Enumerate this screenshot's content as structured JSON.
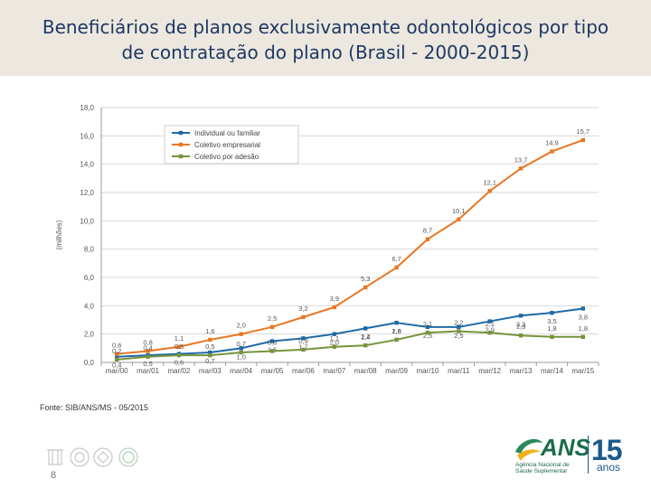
{
  "slide": {
    "title_line1": "Beneficiários de planos exclusivamente odontológicos por tipo",
    "title_line2": "de contratação do plano (Brasil - 2000-2015)",
    "source": "Fonte: SIB/ANS/MS - 05/2015",
    "page_number": "8",
    "logo_text": "ANS",
    "logo_subtitle": "Agência Nacional de Saúde Suplementar",
    "anniversary_number": "15",
    "anniversary_word": "anos"
  },
  "chart_data": {
    "type": "line",
    "title": "",
    "ylabel": "(milhões)",
    "xlabel": "",
    "ylim": [
      0,
      18
    ],
    "yticks": [
      "0,0",
      "2,0",
      "4,0",
      "6,0",
      "8,0",
      "10,0",
      "12,0",
      "14,0",
      "16,0",
      "18,0"
    ],
    "categories": [
      "mar/00",
      "mar/01",
      "mar/02",
      "mar/03",
      "mar/04",
      "mar/05",
      "mar/06",
      "mar/07",
      "mar/08",
      "mar/09",
      "mar/10",
      "mar/11",
      "mar/12",
      "mar/13",
      "mar/14",
      "mar/15"
    ],
    "legend_position": "top-left",
    "series": [
      {
        "name": "Individual ou familiar",
        "color": "#1f6aa5",
        "values": [
          0.4,
          0.5,
          0.6,
          0.7,
          1.0,
          1.5,
          1.7,
          2.0,
          2.4,
          2.8,
          2.5,
          2.5,
          2.9,
          3.3,
          3.5,
          3.8
        ],
        "labels": [
          "0,4",
          "0,5",
          "0,6",
          "0,7",
          "1,0",
          "1,5",
          "1,7",
          "2,0",
          "2,4",
          "2,8",
          "2,5",
          "2,5",
          "2,9",
          "3,3",
          "3,5",
          "3,8"
        ]
      },
      {
        "name": "Coletivo empresarial",
        "color": "#e87722",
        "values": [
          0.6,
          0.8,
          1.1,
          1.6,
          2.0,
          2.5,
          3.2,
          3.9,
          5.3,
          6.7,
          8.7,
          10.1,
          12.1,
          13.7,
          14.9,
          15.7
        ],
        "labels": [
          "0,6",
          "0,8",
          "1,1",
          "1,6",
          "2,0",
          "2,5",
          "3,2",
          "3,9",
          "5,3",
          "6,7",
          "8,7",
          "10,1",
          "12,1",
          "13,7",
          "14,9",
          "15,7"
        ]
      },
      {
        "name": "Coletivo por adesão",
        "color": "#77933c",
        "values": [
          0.2,
          0.4,
          0.5,
          0.5,
          0.7,
          0.8,
          0.9,
          1.1,
          1.2,
          1.6,
          2.1,
          2.2,
          2.1,
          1.9,
          1.8,
          1.8
        ],
        "labels": [
          "0,2",
          "0,4",
          "0,5",
          "0,5",
          "0,7",
          "0,8",
          "0,9",
          "1,1",
          "1,2",
          "1,6",
          "2,1",
          "2,2",
          "2,1",
          "1,9",
          "1,8",
          "1,8"
        ]
      }
    ]
  }
}
